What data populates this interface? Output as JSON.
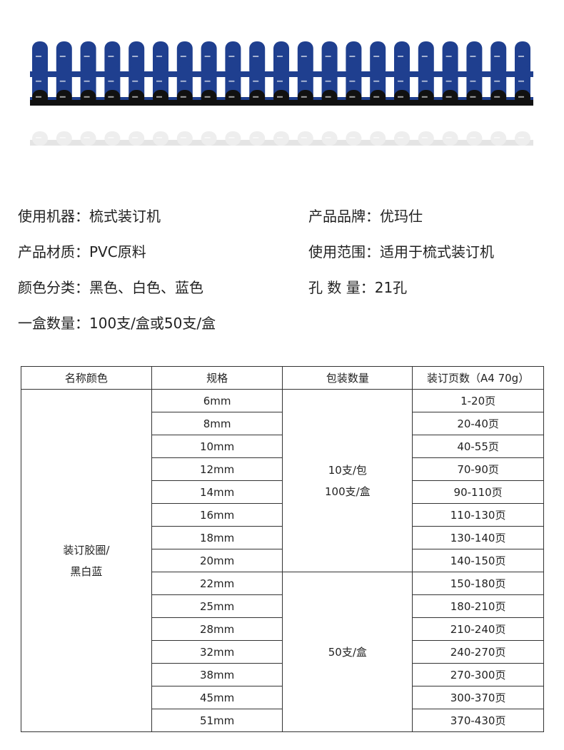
{
  "specs": {
    "machine": "使用机器：梳式装订机",
    "brand": "产品品牌：优玛仕",
    "material": "产品材质：PVC原料",
    "scope": "使用范围：适用于梳式装订机",
    "colors": "颜色分类：黑色、白色、蓝色",
    "holes": "孔 数 量：21孔",
    "box_qty": "一盒数量：100支/盒或50支/盒"
  },
  "comb_colors": {
    "blue": "#1f3f8f",
    "black": "#111111",
    "white": "#eeeeee"
  },
  "table": {
    "headers": [
      "名称颜色",
      "规格",
      "包装数量",
      "装订页数（A4 70g）"
    ],
    "name_line1": "装订胶圈/",
    "name_line2": "黑白蓝",
    "pack1_line1": "10支/包",
    "pack1_line2": "100支/盒",
    "pack2": "50支/盒",
    "rows": [
      {
        "size": "6mm",
        "pages": "1-20页"
      },
      {
        "size": "8mm",
        "pages": "20-40页"
      },
      {
        "size": "10mm",
        "pages": "40-55页"
      },
      {
        "size": "12mm",
        "pages": "70-90页"
      },
      {
        "size": "14mm",
        "pages": "90-110页"
      },
      {
        "size": "16mm",
        "pages": "110-130页"
      },
      {
        "size": "18mm",
        "pages": "130-140页"
      },
      {
        "size": "20mm",
        "pages": "140-150页"
      },
      {
        "size": "22mm",
        "pages": "150-180页"
      },
      {
        "size": "25mm",
        "pages": "180-210页"
      },
      {
        "size": "28mm",
        "pages": "210-240页"
      },
      {
        "size": "32mm",
        "pages": "240-270页"
      },
      {
        "size": "38mm",
        "pages": "270-300页"
      },
      {
        "size": "45mm",
        "pages": "300-370页"
      },
      {
        "size": "51mm",
        "pages": "370-430页"
      }
    ]
  }
}
